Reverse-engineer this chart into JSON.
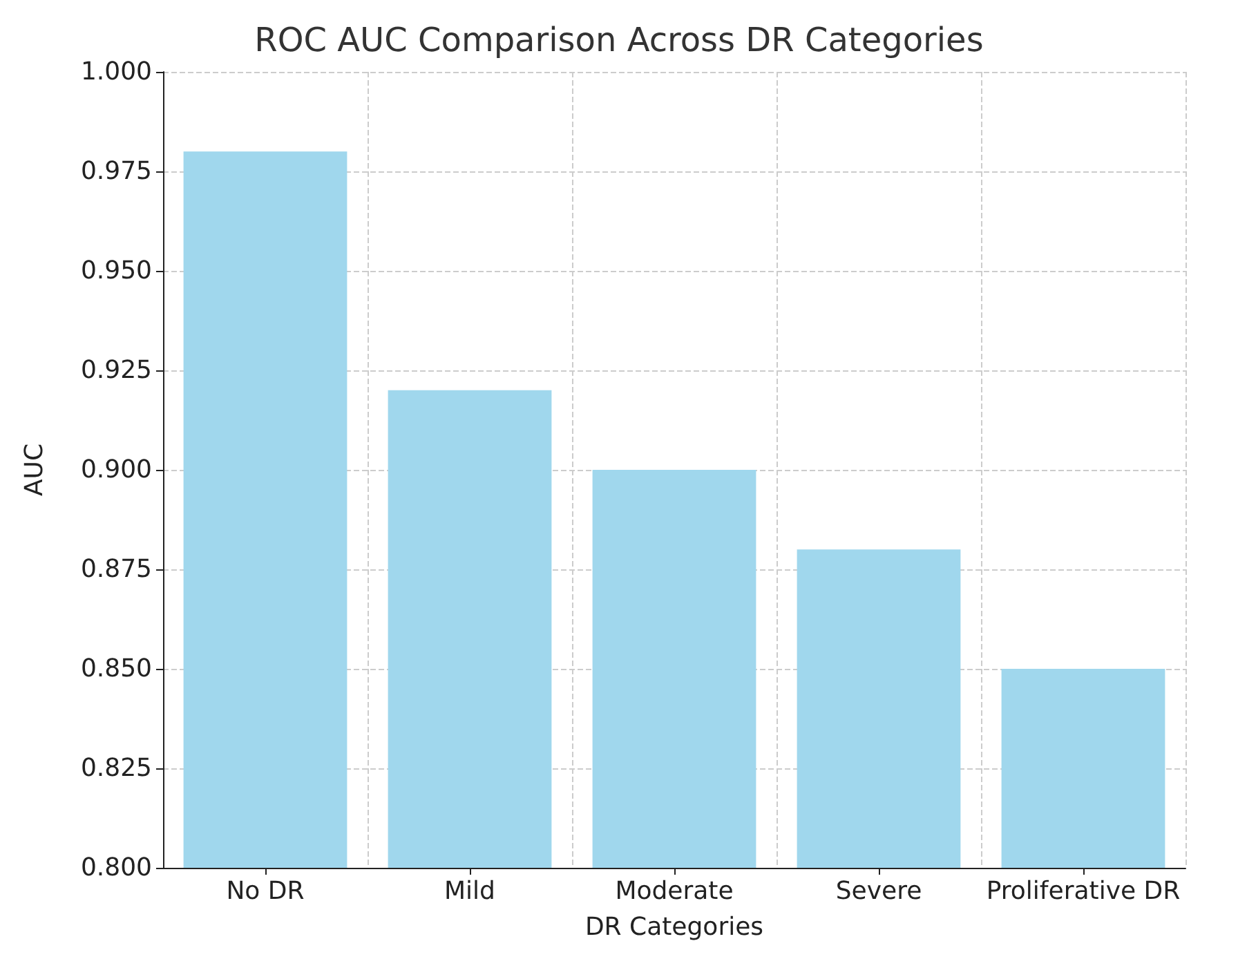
{
  "chart_data": {
    "type": "bar",
    "title": "ROC AUC Comparison Across DR Categories",
    "xlabel": "DR Categories",
    "ylabel": "AUC",
    "categories": [
      "No DR",
      "Mild",
      "Moderate",
      "Severe",
      "Proliferative DR"
    ],
    "values": [
      0.98,
      0.92,
      0.9,
      0.88,
      0.85
    ],
    "color": "#a0d7ed",
    "ylim": [
      0.8,
      1.0
    ],
    "yticks": [
      {
        "value": 0.8,
        "label": "0.800"
      },
      {
        "value": 0.825,
        "label": "0.825"
      },
      {
        "value": 0.85,
        "label": "0.850"
      },
      {
        "value": 0.875,
        "label": "0.875"
      },
      {
        "value": 0.9,
        "label": "0.900"
      },
      {
        "value": 0.925,
        "label": "0.925"
      },
      {
        "value": 0.95,
        "label": "0.950"
      },
      {
        "value": 0.975,
        "label": "0.975"
      },
      {
        "value": 1.0,
        "label": "1.000"
      }
    ],
    "grid": true
  }
}
